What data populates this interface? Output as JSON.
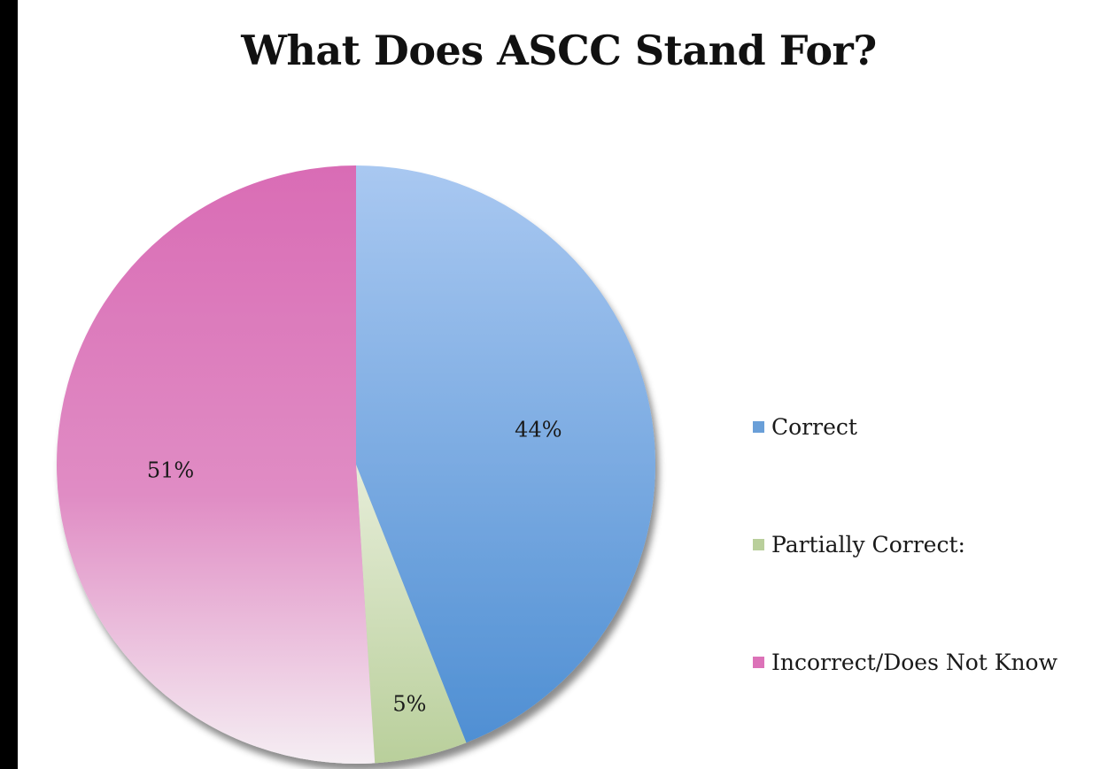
{
  "chart_data": {
    "type": "pie",
    "title": "What Does ASCC Stand For?",
    "slices": [
      {
        "label": "Correct",
        "value": 44,
        "display": "44%",
        "color": "#6a9fd8",
        "light": "#a9c8f1"
      },
      {
        "label": "Partially Correct:",
        "value": 5,
        "display": "5%",
        "color": "#b9cf9b",
        "light": "#e6edd8"
      },
      {
        "label": "Incorrect/Does Not Know",
        "value": 51,
        "display": "51%",
        "color": "#dc72b8",
        "light": "#f4e6ef"
      }
    ],
    "legend_position": "right"
  }
}
